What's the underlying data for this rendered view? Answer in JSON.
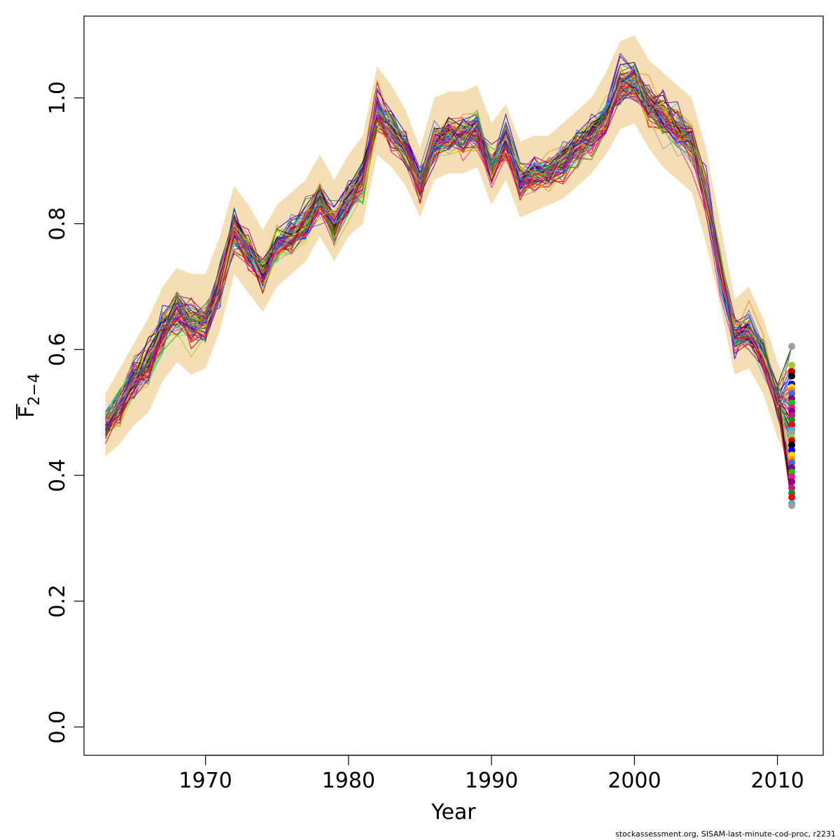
{
  "chart_data": {
    "type": "line",
    "xlabel": "Year",
    "ylabel_main": "F",
    "ylabel_sub": "2−4",
    "xlim": [
      1961.5,
      2013.2
    ],
    "ylim": [
      -0.045,
      1.13
    ],
    "x_ticks": [
      {
        "value": 1970,
        "label": "1970"
      },
      {
        "value": 1980,
        "label": "1980"
      },
      {
        "value": 1990,
        "label": "1990"
      },
      {
        "value": 2000,
        "label": "2000"
      },
      {
        "value": 2010,
        "label": "2010"
      }
    ],
    "y_ticks": [
      {
        "value": 0.0,
        "label": "0.0"
      },
      {
        "value": 0.2,
        "label": "0.2"
      },
      {
        "value": 0.4,
        "label": "0.4"
      },
      {
        "value": 0.6,
        "label": "0.6"
      },
      {
        "value": 0.8,
        "label": "0.8"
      },
      {
        "value": 1.0,
        "label": "1.0"
      }
    ],
    "grid": false,
    "band_color": "#f5deb3",
    "years": [
      1963,
      1964,
      1965,
      1966,
      1967,
      1968,
      1969,
      1970,
      1971,
      1972,
      1973,
      1974,
      1975,
      1976,
      1977,
      1978,
      1979,
      1980,
      1981,
      1982,
      1983,
      1984,
      1985,
      1986,
      1987,
      1988,
      1989,
      1990,
      1991,
      1992,
      1993,
      1994,
      1995,
      1996,
      1997,
      1998,
      1999,
      2000,
      2001,
      2002,
      2003,
      2004,
      2005,
      2006,
      2007,
      2008,
      2009,
      2010,
      2011
    ],
    "central": [
      0.48,
      0.51,
      0.55,
      0.58,
      0.63,
      0.66,
      0.64,
      0.64,
      0.7,
      0.79,
      0.76,
      0.72,
      0.76,
      0.78,
      0.8,
      0.84,
      0.8,
      0.84,
      0.87,
      0.98,
      0.95,
      0.92,
      0.86,
      0.93,
      0.94,
      0.94,
      0.95,
      0.89,
      0.93,
      0.87,
      0.88,
      0.88,
      0.9,
      0.92,
      0.94,
      0.97,
      1.02,
      1.03,
      0.99,
      0.97,
      0.95,
      0.93,
      0.85,
      0.73,
      0.62,
      0.63,
      0.59,
      0.52,
      0.46
    ],
    "band_lower": [
      0.43,
      0.45,
      0.48,
      0.5,
      0.55,
      0.58,
      0.56,
      0.57,
      0.63,
      0.72,
      0.69,
      0.66,
      0.7,
      0.72,
      0.74,
      0.78,
      0.74,
      0.78,
      0.8,
      0.91,
      0.89,
      0.86,
      0.81,
      0.87,
      0.88,
      0.88,
      0.89,
      0.83,
      0.87,
      0.81,
      0.82,
      0.83,
      0.84,
      0.86,
      0.88,
      0.91,
      0.95,
      0.96,
      0.92,
      0.89,
      0.87,
      0.85,
      0.77,
      0.67,
      0.56,
      0.57,
      0.53,
      0.46,
      0.41
    ],
    "band_upper": [
      0.53,
      0.57,
      0.61,
      0.65,
      0.7,
      0.73,
      0.72,
      0.72,
      0.78,
      0.86,
      0.83,
      0.79,
      0.83,
      0.85,
      0.87,
      0.91,
      0.87,
      0.91,
      0.94,
      1.05,
      1.02,
      0.98,
      0.92,
      1.0,
      1.01,
      1.01,
      1.02,
      0.96,
      0.99,
      0.93,
      0.94,
      0.94,
      0.96,
      0.98,
      1.0,
      1.04,
      1.09,
      1.1,
      1.06,
      1.04,
      1.02,
      1.0,
      0.92,
      0.8,
      0.68,
      0.7,
      0.65,
      0.58,
      0.52
    ],
    "series_count": 80,
    "series_colors": [
      "#000000",
      "#ff0000",
      "#00cd00",
      "#0000ff",
      "#00bfff",
      "#ff1493",
      "#ffd700",
      "#a0a0a0",
      "#8b008b",
      "#ff8c00",
      "#9acd32",
      "#c71585",
      "#4169e1",
      "#cd0000",
      "#228b22",
      "#800080"
    ],
    "final_points_year": 2011,
    "final_points": [
      0.605,
      0.575,
      0.565,
      0.558,
      0.545,
      0.54,
      0.535,
      0.53,
      0.522,
      0.515,
      0.508,
      0.502,
      0.495,
      0.488,
      0.48,
      0.472,
      0.468,
      0.46,
      0.455,
      0.448,
      0.44,
      0.432,
      0.425,
      0.42,
      0.412,
      0.405,
      0.398,
      0.39,
      0.38,
      0.372,
      0.365,
      0.355,
      0.352
    ]
  },
  "footer_text": "stockassessment.org, SISAM-last-minute-cod-proc, r2231"
}
